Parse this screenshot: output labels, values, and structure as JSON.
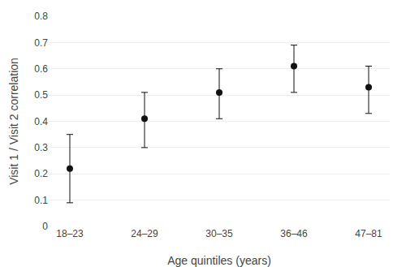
{
  "chart_data": {
    "type": "scatter",
    "categories": [
      "18–23",
      "24–29",
      "30–35",
      "36–46",
      "47–81"
    ],
    "values": [
      0.22,
      0.41,
      0.51,
      0.61,
      0.53
    ],
    "yerr_lower": [
      0.13,
      0.11,
      0.1,
      0.1,
      0.1
    ],
    "yerr_upper": [
      0.13,
      0.1,
      0.09,
      0.08,
      0.08
    ],
    "xlabel": "Age quintiles (years)",
    "ylabel": "Visit 1 / Visit 2 correlation",
    "ylim": [
      0,
      0.8
    ],
    "yticks": [
      0,
      0.1,
      0.2,
      0.3,
      0.4,
      0.5,
      0.6,
      0.7,
      0.8
    ],
    "color": "#111111",
    "marker": "circle",
    "grid": true
  }
}
